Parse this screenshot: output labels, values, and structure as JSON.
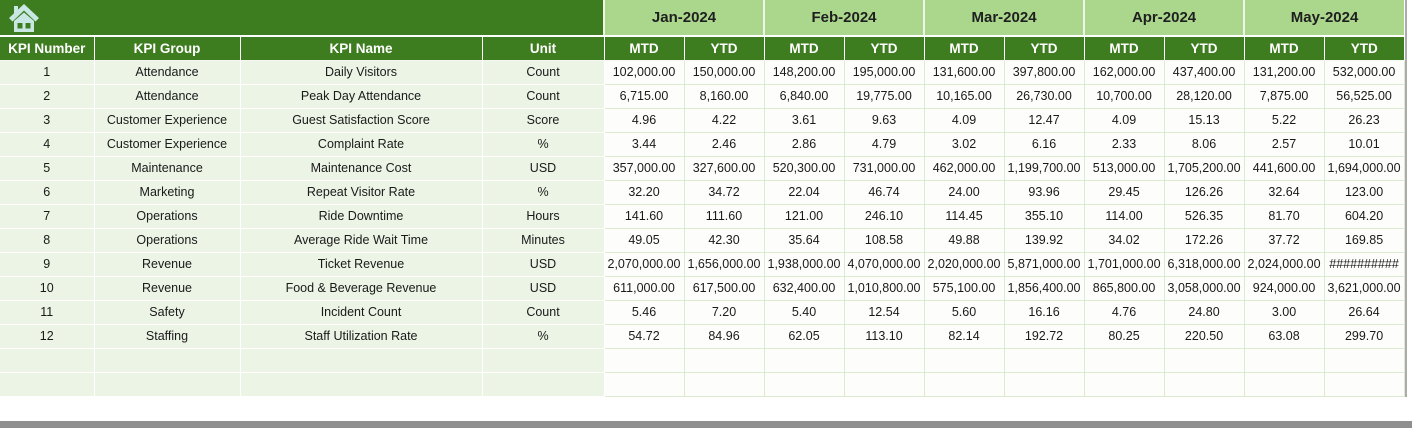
{
  "table": {
    "months": [
      "Jan-2024",
      "Feb-2024",
      "Mar-2024",
      "Apr-2024",
      "May-2024"
    ],
    "period_headers": [
      "MTD",
      "YTD"
    ],
    "left_headers": [
      "KPI Number",
      "KPI Group",
      "KPI Name",
      "Unit"
    ],
    "rows": [
      {
        "number": "1",
        "group": "Attendance",
        "name": "Daily Visitors",
        "unit": "Count",
        "values": [
          "102,000.00",
          "150,000.00",
          "148,200.00",
          "195,000.00",
          "131,600.00",
          "397,800.00",
          "162,000.00",
          "437,400.00",
          "131,200.00",
          "532,000.00"
        ]
      },
      {
        "number": "2",
        "group": "Attendance",
        "name": "Peak Day Attendance",
        "unit": "Count",
        "values": [
          "6,715.00",
          "8,160.00",
          "6,840.00",
          "19,775.00",
          "10,165.00",
          "26,730.00",
          "10,700.00",
          "28,120.00",
          "7,875.00",
          "56,525.00"
        ]
      },
      {
        "number": "3",
        "group": "Customer Experience",
        "name": "Guest Satisfaction Score",
        "unit": "Score",
        "values": [
          "4.96",
          "4.22",
          "3.61",
          "9.63",
          "4.09",
          "12.47",
          "4.09",
          "15.13",
          "5.22",
          "26.23"
        ]
      },
      {
        "number": "4",
        "group": "Customer Experience",
        "name": "Complaint Rate",
        "unit": "%",
        "values": [
          "3.44",
          "2.46",
          "2.86",
          "4.79",
          "3.02",
          "6.16",
          "2.33",
          "8.06",
          "2.57",
          "10.01"
        ]
      },
      {
        "number": "5",
        "group": "Maintenance",
        "name": "Maintenance Cost",
        "unit": "USD",
        "values": [
          "357,000.00",
          "327,600.00",
          "520,300.00",
          "731,000.00",
          "462,000.00",
          "1,199,700.00",
          "513,000.00",
          "1,705,200.00",
          "441,600.00",
          "1,694,000.00"
        ]
      },
      {
        "number": "6",
        "group": "Marketing",
        "name": "Repeat Visitor Rate",
        "unit": "%",
        "values": [
          "32.20",
          "34.72",
          "22.04",
          "46.74",
          "24.00",
          "93.96",
          "29.45",
          "126.26",
          "32.64",
          "123.00"
        ]
      },
      {
        "number": "7",
        "group": "Operations",
        "name": "Ride Downtime",
        "unit": "Hours",
        "values": [
          "141.60",
          "111.60",
          "121.00",
          "246.10",
          "114.45",
          "355.10",
          "114.00",
          "526.35",
          "81.70",
          "604.20"
        ]
      },
      {
        "number": "8",
        "group": "Operations",
        "name": "Average Ride Wait Time",
        "unit": "Minutes",
        "values": [
          "49.05",
          "42.30",
          "35.64",
          "108.58",
          "49.88",
          "139.92",
          "34.02",
          "172.26",
          "37.72",
          "169.85"
        ]
      },
      {
        "number": "9",
        "group": "Revenue",
        "name": "Ticket Revenue",
        "unit": "USD",
        "values": [
          "2,070,000.00",
          "1,656,000.00",
          "1,938,000.00",
          "4,070,000.00",
          "2,020,000.00",
          "5,871,000.00",
          "1,701,000.00",
          "6,318,000.00",
          "2,024,000.00",
          "##########"
        ]
      },
      {
        "number": "10",
        "group": "Revenue",
        "name": "Food & Beverage Revenue",
        "unit": "USD",
        "values": [
          "611,000.00",
          "617,500.00",
          "632,400.00",
          "1,010,800.00",
          "575,100.00",
          "1,856,400.00",
          "865,800.00",
          "3,058,000.00",
          "924,000.00",
          "3,621,000.00"
        ]
      },
      {
        "number": "11",
        "group": "Safety",
        "name": "Incident Count",
        "unit": "Count",
        "values": [
          "5.46",
          "7.20",
          "5.40",
          "12.54",
          "5.60",
          "16.16",
          "4.76",
          "24.80",
          "3.00",
          "26.64"
        ]
      },
      {
        "number": "12",
        "group": "Staffing",
        "name": "Staff Utilization Rate",
        "unit": "%",
        "values": [
          "54.72",
          "84.96",
          "62.05",
          "113.10",
          "82.14",
          "192.72",
          "80.25",
          "220.50",
          "63.08",
          "299.70"
        ]
      }
    ],
    "empty_row_count": 2
  },
  "icons": {
    "home": "home-icon"
  },
  "colors": {
    "header_dark_green": "#3E7D1F",
    "header_light_green": "#ABD78D",
    "row_tint_green": "#ECF4E5",
    "value_cell_white": "#FDFEFB",
    "gridline_green": "#DCEAD0",
    "home_icon_fill": "#C9E8E4",
    "scrollbar_gray": "#8F8F8F"
  }
}
